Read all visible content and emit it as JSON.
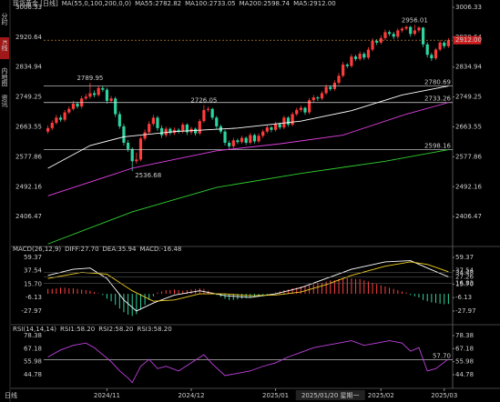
{
  "side_tabs": [
    "分时",
    "K线",
    "内地图",
    "资讯"
  ],
  "active_tab": 1,
  "footer_tab": "日线",
  "chart_data": [
    {
      "type": "candlestick",
      "title_parts": [
        {
          "text": "现货黄金 [日线]",
          "color": "#e0e0e0"
        },
        {
          "text": "MA(55,0,100,200,0,0)",
          "color": "#bbbbbb"
        },
        {
          "text": "MA55:2782.82",
          "color": "#ffffff"
        },
        {
          "text": "MA100:2733.05",
          "color": "#e040e0"
        },
        {
          "text": "MA200:2598.74",
          "color": "#30d030"
        },
        {
          "text": "MA5:2912.00",
          "color": "#999999"
        }
      ],
      "xlim": [
        -1,
        96
      ],
      "ylim": [
        2323.4,
        3016.7
      ],
      "yticks": [
        3006.33,
        2920.64,
        2834.94,
        2749.25,
        2663.55,
        2577.86,
        2492.16,
        2406.47
      ],
      "up_color": "#ff3c3c",
      "down_color": "#2ed3a0",
      "open": [
        2650,
        2660,
        2675,
        2690,
        2684,
        2705,
        2715,
        2730,
        2722,
        2745,
        2750,
        2760,
        2755,
        2775,
        2770,
        2738,
        2745,
        2700,
        2665,
        2618,
        2600,
        2565,
        2570,
        2630,
        2648,
        2672,
        2690,
        2660,
        2640,
        2658,
        2646,
        2655,
        2650,
        2670,
        2648,
        2658,
        2645,
        2680,
        2712,
        2715,
        2690,
        2665,
        2650,
        2618,
        2608,
        2625,
        2620,
        2632,
        2618,
        2640,
        2622,
        2638,
        2650,
        2662,
        2655,
        2672,
        2662,
        2690,
        2670,
        2700,
        2712,
        2718,
        2705,
        2740,
        2748,
        2745,
        2760,
        2778,
        2772,
        2790,
        2810,
        2842,
        2838,
        2865,
        2858,
        2873,
        2862,
        2885,
        2910,
        2905,
        2918,
        2935,
        2930,
        2922,
        2940,
        2945,
        2950,
        2930,
        2940,
        2948,
        2900,
        2870,
        2860,
        2885,
        2905,
        2895
      ],
      "high": [
        2668,
        2682,
        2698,
        2697,
        2712,
        2722,
        2738,
        2736,
        2752,
        2758,
        2789.95,
        2768,
        2782,
        2780,
        2776,
        2752,
        2750,
        2708,
        2672,
        2626,
        2605,
        2590,
        2636,
        2656,
        2680,
        2698,
        2695,
        2668,
        2664,
        2662,
        2662,
        2660,
        2676,
        2674,
        2664,
        2662,
        2686,
        2726.05,
        2722,
        2718,
        2695,
        2670,
        2655,
        2624,
        2632,
        2630,
        2638,
        2636,
        2646,
        2644,
        2645,
        2656,
        2668,
        2666,
        2678,
        2676,
        2696,
        2694,
        2706,
        2718,
        2725,
        2722,
        2746,
        2755,
        2752,
        2766,
        2785,
        2783,
        2797,
        2818,
        2850,
        2846,
        2872,
        2870,
        2880,
        2878,
        2892,
        2918,
        2915,
        2926,
        2942,
        2940,
        2936,
        2946,
        2950,
        2954,
        2953,
        2956.01,
        2952,
        2950,
        2906,
        2876,
        2890,
        2912,
        2910,
        2918
      ],
      "low": [
        2644,
        2654,
        2670,
        2678,
        2678,
        2700,
        2710,
        2716,
        2716,
        2740,
        2744,
        2748,
        2750,
        2764,
        2730,
        2732,
        2692,
        2658,
        2610,
        2592,
        2536.68,
        2558,
        2565,
        2624,
        2642,
        2666,
        2652,
        2632,
        2634,
        2640,
        2640,
        2644,
        2645,
        2640,
        2642,
        2638,
        2640,
        2675,
        2706,
        2684,
        2658,
        2644,
        2610,
        2600,
        2602,
        2614,
        2615,
        2612,
        2613,
        2616,
        2617,
        2632,
        2645,
        2648,
        2650,
        2656,
        2657,
        2664,
        2665,
        2695,
        2706,
        2698,
        2700,
        2734,
        2738,
        2740,
        2755,
        2766,
        2767,
        2784,
        2805,
        2832,
        2833,
        2852,
        2853,
        2856,
        2857,
        2880,
        2898,
        2900,
        2912,
        2924,
        2915,
        2916,
        2934,
        2940,
        2922,
        2925,
        2934,
        2892,
        2862,
        2852,
        2855,
        2880,
        2888,
        2890
      ],
      "close": [
        2660,
        2675,
        2690,
        2684,
        2705,
        2715,
        2730,
        2722,
        2745,
        2750,
        2760,
        2755,
        2775,
        2770,
        2738,
        2745,
        2700,
        2665,
        2618,
        2600,
        2565,
        2570,
        2630,
        2648,
        2672,
        2690,
        2660,
        2640,
        2658,
        2646,
        2655,
        2650,
        2670,
        2648,
        2658,
        2645,
        2680,
        2712,
        2715,
        2690,
        2665,
        2650,
        2618,
        2608,
        2625,
        2620,
        2632,
        2618,
        2640,
        2622,
        2638,
        2650,
        2662,
        2655,
        2672,
        2662,
        2690,
        2670,
        2700,
        2712,
        2718,
        2705,
        2740,
        2748,
        2745,
        2760,
        2778,
        2772,
        2790,
        2810,
        2842,
        2838,
        2865,
        2858,
        2873,
        2862,
        2885,
        2910,
        2905,
        2918,
        2935,
        2930,
        2922,
        2940,
        2945,
        2950,
        2930,
        2940,
        2948,
        2900,
        2870,
        2860,
        2885,
        2905,
        2895,
        2912
      ],
      "series": [
        {
          "name": "MA55",
          "color": "#ffffff",
          "x": [
            0,
            10,
            18,
            30,
            45,
            60,
            72,
            84,
            95
          ],
          "values": [
            2545,
            2610,
            2635,
            2650,
            2660,
            2680,
            2710,
            2755,
            2780.69
          ]
        },
        {
          "name": "MA100",
          "color": "#e040e0",
          "x": [
            0,
            20,
            40,
            55,
            70,
            85,
            95
          ],
          "values": [
            2466,
            2545,
            2595,
            2615,
            2640,
            2700,
            2733.26
          ]
        },
        {
          "name": "MA200",
          "color": "#30d030",
          "x": [
            0,
            20,
            40,
            60,
            80,
            95
          ],
          "values": [
            2328,
            2420,
            2490,
            2530,
            2565,
            2598.16
          ]
        }
      ],
      "levels": [
        2780.69,
        2733.26,
        2598.16
      ],
      "last_price": {
        "value": 2912,
        "label": "2912.00"
      },
      "annotations": [
        {
          "x": 10,
          "value": 2789.95,
          "color": "#ff6060",
          "align": "middle",
          "side": "above"
        },
        {
          "x": 37,
          "value": 2726.05,
          "color": "#ff6060",
          "align": "middle",
          "side": "above"
        },
        {
          "x": 87,
          "value": 2956.01,
          "color": "#ff6060",
          "align": "middle",
          "side": "above"
        },
        {
          "x": 20,
          "value": 2536.68,
          "color": "#40e0b0",
          "align": "start",
          "side": "below"
        }
      ]
    },
    {
      "type": "macd",
      "title_parts": [
        {
          "text": "MACD(26,12,9)",
          "color": "#dddddd"
        },
        {
          "text": "DIFF:27.70",
          "color": "#ffffff"
        },
        {
          "text": "DEA:35.94",
          "color": "#f0d020"
        },
        {
          "text": "MACD:-16.48",
          "color": "#e040e0"
        }
      ],
      "xlim": [
        -1,
        96
      ],
      "ylim": [
        -48.8,
        63.8
      ],
      "yticks": [
        59.37,
        37.54,
        {
          "value": 15.7,
          "label": "15.70"
        },
        -6.13,
        -27.97
      ],
      "pos_color": "#ff4040",
      "neg_color": "#2ed3a0",
      "histogram": [
        8,
        8,
        9,
        10,
        10,
        9,
        9,
        8,
        7,
        6,
        5,
        3,
        1,
        -2,
        -8,
        -12,
        -18,
        -24,
        -30,
        -34,
        -36,
        -33,
        -26,
        -18,
        -10,
        -4,
        2,
        4,
        6,
        6,
        7,
        6,
        5,
        6,
        7,
        8,
        9,
        8,
        5,
        2,
        -2,
        -5,
        -8,
        -10,
        -10,
        -9,
        -8,
        -7,
        -6,
        -5,
        -5,
        -4,
        -2,
        0,
        2,
        4,
        6,
        7,
        9,
        10,
        12,
        12,
        14,
        16,
        18,
        18,
        20,
        22,
        22,
        24,
        26,
        26,
        25,
        24,
        24,
        22,
        20,
        18,
        16,
        14,
        12,
        10,
        8,
        6,
        4,
        2,
        -2,
        -4,
        -6,
        -10,
        -12,
        -14,
        -15,
        -16,
        -17,
        -16.48
      ],
      "series": [
        {
          "name": "DIFF",
          "color": "#ffffff",
          "x": [
            0,
            6,
            10,
            14,
            18,
            21,
            25,
            30,
            36,
            42,
            48,
            54,
            60,
            66,
            72,
            80,
            86,
            90,
            95
          ],
          "values": [
            30,
            40,
            42,
            25,
            -10,
            -28,
            -15,
            -2,
            5,
            -3,
            -6,
            0,
            10,
            25,
            40,
            52,
            54,
            42,
            27.7
          ]
        },
        {
          "name": "DEA",
          "color": "#f0d020",
          "x": [
            0,
            8,
            14,
            20,
            25,
            30,
            36,
            42,
            48,
            54,
            60,
            66,
            72,
            80,
            86,
            90,
            95
          ],
          "values": [
            25,
            35,
            32,
            5,
            -12,
            -10,
            0,
            0,
            -3,
            -2,
            3,
            15,
            30,
            45,
            52,
            48,
            35.94
          ]
        }
      ],
      "marker_labels": [
        {
          "value": 34.48,
          "color": "#f0d020"
        },
        {
          "value": 27.26,
          "color": "#ffffff"
        },
        {
          "value": 16.83,
          "color": "#e040e0"
        }
      ]
    },
    {
      "type": "line",
      "title_parts": [
        {
          "text": "RSI(14,14,14)",
          "color": "#dddddd"
        },
        {
          "text": "RSI1:58.20",
          "color": "#ffffff"
        },
        {
          "text": "RSI2:58.20",
          "color": "#f0d020"
        },
        {
          "text": "RSI3:58.20",
          "color": "#e040e0"
        }
      ],
      "xlim": [
        -1,
        96
      ],
      "ylim": [
        34.6,
        80.73
      ],
      "yticks": [
        78.38,
        67.18,
        55.98,
        44.78
      ],
      "series": [
        {
          "name": "RSI",
          "color": "#c040e0",
          "x": [
            0,
            3,
            6,
            9,
            11,
            13,
            15,
            17,
            19,
            20,
            22,
            24,
            26,
            28,
            31,
            34,
            37,
            39,
            42,
            45,
            48,
            51,
            54,
            57,
            60,
            63,
            66,
            69,
            72,
            75,
            78,
            81,
            84,
            86,
            88,
            90,
            92,
            95
          ],
          "values": [
            60,
            66,
            70,
            72,
            68,
            62,
            56,
            48,
            42,
            38,
            52,
            58,
            50,
            52,
            48,
            55,
            62,
            54,
            44,
            46,
            48,
            52,
            55,
            60,
            64,
            68,
            70,
            72,
            74,
            70,
            72,
            74,
            72,
            65,
            68,
            48,
            50,
            58.2
          ]
        }
      ],
      "levels": [
        {
          "value": 57.7,
          "label": "57.70"
        }
      ],
      "xticks": [
        {
          "value": 14,
          "label": "2024/11"
        },
        {
          "value": 34,
          "label": "2024/12"
        },
        {
          "value": 54,
          "label": "2025/01"
        },
        {
          "value": 79,
          "label": "2025/02"
        },
        {
          "value": 94,
          "label": "2025/03"
        }
      ],
      "crosshair": {
        "x": 67,
        "label": "2025/01/20 星期一"
      }
    }
  ]
}
